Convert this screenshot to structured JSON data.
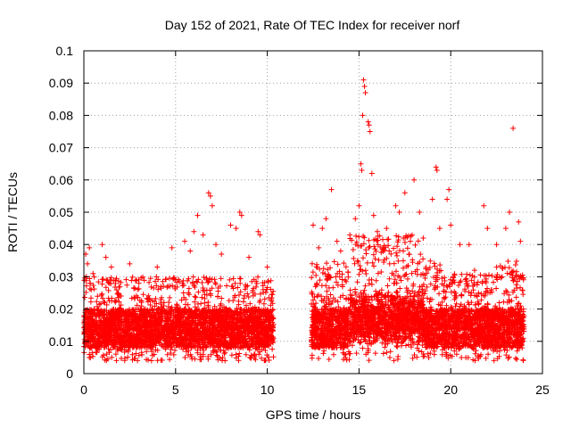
{
  "chart_data": {
    "type": "scatter",
    "title": "Day 152 of 2021, Rate Of TEC Index for receiver norf",
    "xlabel": "GPS time / hours",
    "ylabel": "ROTI / TECUs",
    "xlim": [
      0,
      25
    ],
    "ylim": [
      0,
      0.1
    ],
    "x_ticks": [
      "0",
      "5",
      "10",
      "15",
      "20",
      "25"
    ],
    "y_ticks": [
      "0",
      "0.01",
      "0.02",
      "0.03",
      "0.04",
      "0.05",
      "0.06",
      "0.07",
      "0.08",
      "0.09",
      "0.1"
    ],
    "grid": true,
    "marker": "plus",
    "series_color": "#ff0000",
    "series": [
      {
        "name": "",
        "notes_segments": [
          {
            "x_start": 0.0,
            "x_end": 10.35,
            "typical_min": 0.004,
            "typical_max": 0.03
          },
          {
            "x_start": 12.4,
            "x_end": 24.0,
            "typical_min": 0.004,
            "typical_max": 0.035
          }
        ],
        "points": [
          [
            0.1,
            0.037
          ],
          [
            0.2,
            0.034
          ],
          [
            0.3,
            0.039
          ],
          [
            0.5,
            0.031
          ],
          [
            1.0,
            0.04
          ],
          [
            1.2,
            0.036
          ],
          [
            1.5,
            0.033
          ],
          [
            2.5,
            0.034
          ],
          [
            3.0,
            0.028
          ],
          [
            4.0,
            0.033
          ],
          [
            4.8,
            0.039
          ],
          [
            5.5,
            0.041
          ],
          [
            5.8,
            0.038
          ],
          [
            6.0,
            0.044
          ],
          [
            6.2,
            0.049
          ],
          [
            6.5,
            0.043
          ],
          [
            6.8,
            0.056
          ],
          [
            6.9,
            0.055
          ],
          [
            7.0,
            0.052
          ],
          [
            7.2,
            0.04
          ],
          [
            7.5,
            0.037
          ],
          [
            8.0,
            0.046
          ],
          [
            8.3,
            0.045
          ],
          [
            8.5,
            0.05
          ],
          [
            8.6,
            0.049
          ],
          [
            9.0,
            0.036
          ],
          [
            9.5,
            0.044
          ],
          [
            9.6,
            0.043
          ],
          [
            10.0,
            0.033
          ],
          [
            12.5,
            0.046
          ],
          [
            12.8,
            0.039
          ],
          [
            13.0,
            0.045
          ],
          [
            13.2,
            0.048
          ],
          [
            13.5,
            0.057
          ],
          [
            13.8,
            0.041
          ],
          [
            14.0,
            0.038
          ],
          [
            14.5,
            0.043
          ],
          [
            14.8,
            0.048
          ],
          [
            15.0,
            0.052
          ],
          [
            15.1,
            0.065
          ],
          [
            15.15,
            0.063
          ],
          [
            15.2,
            0.08
          ],
          [
            15.25,
            0.091
          ],
          [
            15.3,
            0.089
          ],
          [
            15.35,
            0.087
          ],
          [
            15.5,
            0.078
          ],
          [
            15.55,
            0.077
          ],
          [
            15.6,
            0.075
          ],
          [
            15.7,
            0.062
          ],
          [
            15.8,
            0.049
          ],
          [
            16.0,
            0.044
          ],
          [
            16.5,
            0.045
          ],
          [
            17.0,
            0.052
          ],
          [
            17.2,
            0.05
          ],
          [
            17.5,
            0.056
          ],
          [
            17.8,
            0.041
          ],
          [
            18.0,
            0.06
          ],
          [
            18.3,
            0.05
          ],
          [
            18.5,
            0.042
          ],
          [
            19.0,
            0.054
          ],
          [
            19.2,
            0.064
          ],
          [
            19.25,
            0.063
          ],
          [
            19.4,
            0.045
          ],
          [
            19.8,
            0.054
          ],
          [
            19.9,
            0.057
          ],
          [
            20.0,
            0.046
          ],
          [
            20.5,
            0.04
          ],
          [
            21.0,
            0.04
          ],
          [
            21.3,
            0.032
          ],
          [
            21.8,
            0.052
          ],
          [
            22.0,
            0.045
          ],
          [
            22.5,
            0.04
          ],
          [
            22.8,
            0.03
          ],
          [
            23.0,
            0.045
          ],
          [
            23.2,
            0.05
          ],
          [
            23.4,
            0.076
          ],
          [
            23.7,
            0.047
          ],
          [
            23.8,
            0.041
          ]
        ]
      }
    ]
  }
}
